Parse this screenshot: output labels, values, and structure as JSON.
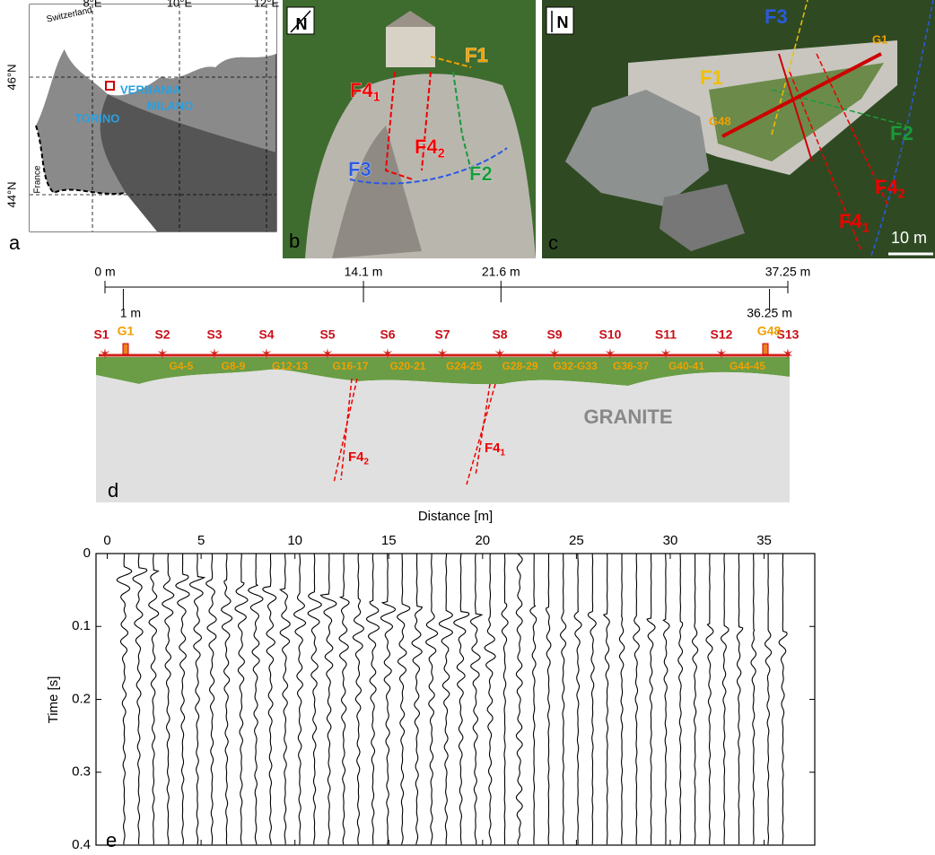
{
  "panel_a": {
    "label": "a",
    "lon_ticks": [
      "8°E",
      "10°E",
      "12°E"
    ],
    "lat_ticks": [
      "46°N",
      "44°N"
    ],
    "countries": [
      "Switzerland",
      "France"
    ],
    "cities": [
      "VERBANIA",
      "MILANO",
      "TORINO"
    ]
  },
  "panel_b": {
    "label": "b",
    "north": "N",
    "faults": [
      {
        "name": "F1"
      },
      {
        "name": "F4",
        "sub": "1"
      },
      {
        "name": "F4",
        "sub": "2"
      },
      {
        "name": "F3"
      },
      {
        "name": "F2"
      }
    ]
  },
  "panel_c": {
    "label": "c",
    "north": "N",
    "faults": [
      {
        "name": "F3"
      },
      {
        "name": "F1"
      },
      {
        "name": "F2"
      },
      {
        "name": "F4",
        "sub": "2"
      },
      {
        "name": "F4",
        "sub": "1"
      }
    ],
    "geophones": [
      "G1",
      "G48"
    ],
    "scale": "10 m"
  },
  "panel_d": {
    "label": "d",
    "distances": [
      {
        "value": 0,
        "label": "0 m"
      },
      {
        "value": 14.1,
        "label": "14.1 m"
      },
      {
        "value": 21.6,
        "label": "21.6 m"
      },
      {
        "value": 37.25,
        "label": "37.25 m"
      },
      {
        "value": 1,
        "label": "1 m"
      },
      {
        "value": 36.25,
        "label": "36.25 m"
      }
    ],
    "sensors": [
      "S1",
      "S2",
      "S3",
      "S4",
      "S5",
      "S6",
      "S7",
      "S8",
      "S9",
      "S10",
      "S11",
      "S12",
      "S13"
    ],
    "geophones": [
      "G1",
      "G4-5",
      "G8-9",
      "G12-13",
      "G16-17",
      "G20-21",
      "G24-25",
      "G28-29",
      "G32-G33",
      "G36-37",
      "G40-41",
      "G44-45",
      "G48"
    ],
    "rock": "GRANITE",
    "faults": [
      {
        "name": "F4",
        "sub": "2"
      },
      {
        "name": "F4",
        "sub": "1"
      }
    ]
  },
  "panel_e": {
    "label": "e",
    "xlabel": "Distance [m]",
    "ylabel": "Time [s]",
    "xlim": [
      -0.6,
      37.7
    ],
    "xticks": [
      0,
      5,
      10,
      15,
      20,
      25,
      30,
      35
    ],
    "ylim": [
      0,
      0.4
    ],
    "yticks": [
      0,
      0.1,
      0.2,
      0.3,
      0.4
    ]
  }
}
